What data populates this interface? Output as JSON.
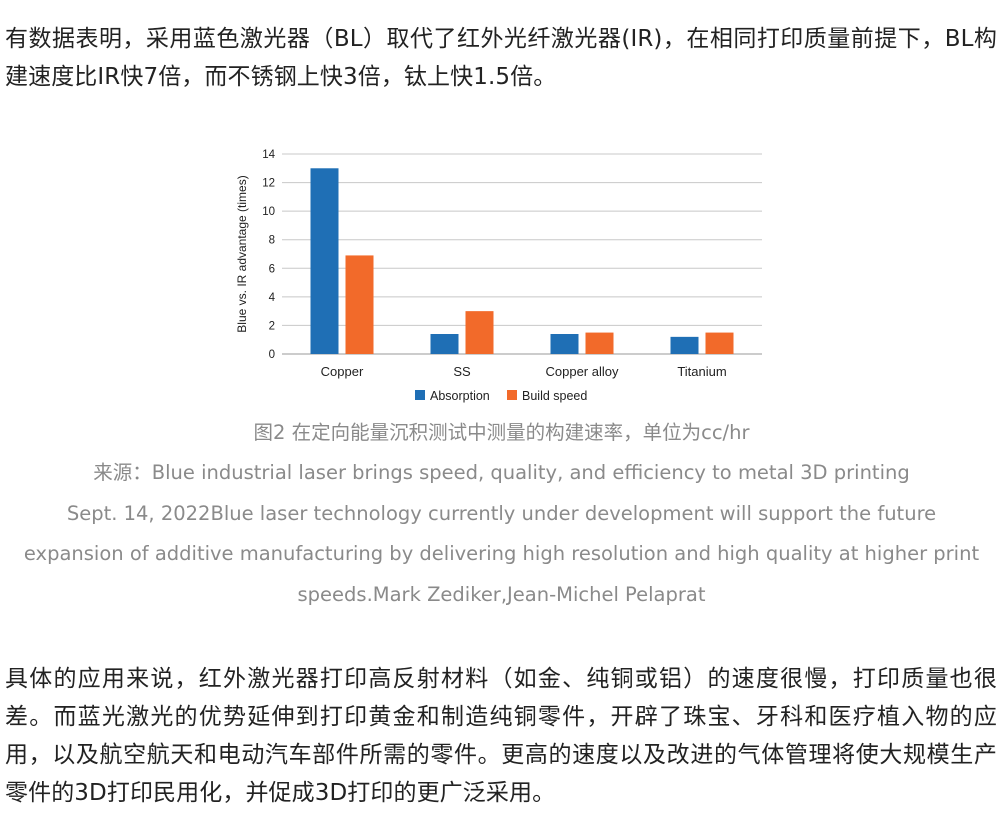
{
  "article": {
    "paragraph_1": "有数据表明，采用蓝色激光器（BL）取代了红外光纤激光器(IR)，在相同打印质量前提下，BL构建速度比IR快7倍，而不锈钢上快3倍，钛上快1.5倍。",
    "figure_caption": "图2 在定向能量沉积测试中测量的构建速率，单位为cc/hr",
    "source_line_1": "来源：Blue industrial laser brings speed, quality, and efficiency to metal 3D printing",
    "source_line_2": "Sept. 14, 2022Blue laser technology currently under development will support the future",
    "source_line_3": "expansion of additive manufacturing by delivering high resolution and high quality at higher print",
    "source_line_4": "speeds.Mark Zediker,Jean-Michel Pelaprat",
    "paragraph_2": "具体的应用来说，红外激光器打印高反射材料（如金、纯铜或铝）的速度很慢，打印质量也很差。而蓝光激光的优势延伸到打印黄金和制造纯铜零件，开辟了珠宝、牙科和医疗植入物的应用，以及航空航天和电动汽车部件所需的零件。更高的速度以及改进的气体管理将使大规模生产零件的3D打印民用化，并促成3D打印的更广泛采用。"
  },
  "chart_data": {
    "type": "bar",
    "categories": [
      "Copper",
      "SS",
      "Copper alloy",
      "Titanium"
    ],
    "series": [
      {
        "name": "Absorption",
        "values": [
          13,
          1.4,
          1.4,
          1.2
        ],
        "color": "#1f6fb5"
      },
      {
        "name": "Build speed",
        "values": [
          6.9,
          3.0,
          1.5,
          1.5
        ],
        "color": "#f26a2a"
      }
    ],
    "ylabel": "Blue vs. IR advantage (times)",
    "xlabel": "",
    "ylim": [
      0,
      14
    ],
    "yticks": [
      "0",
      "2",
      "4",
      "6",
      "8",
      "10",
      "12",
      "14"
    ],
    "grid": true,
    "legend_position": "bottom"
  }
}
